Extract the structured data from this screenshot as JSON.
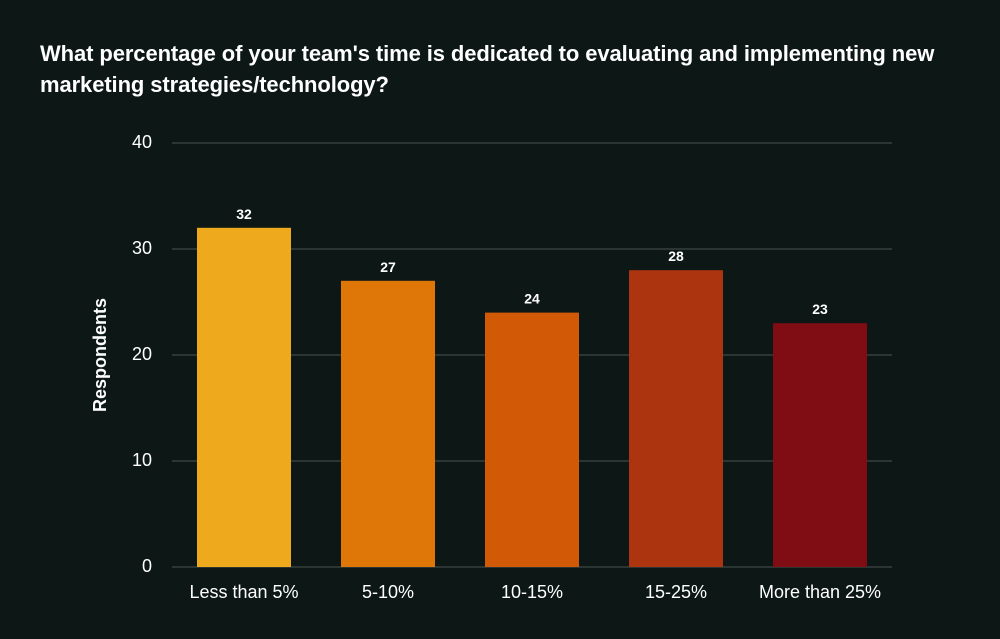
{
  "chart_data": {
    "type": "bar",
    "title": "What percentage of your team's time is dedicated to evaluating and implementing new marketing strategies/technology?",
    "xlabel": "",
    "ylabel": "Respondents",
    "categories": [
      "Less than 5%",
      "5-10%",
      "10-15%",
      "15-25%",
      "More than 25%"
    ],
    "values": [
      32,
      27,
      24,
      28,
      23
    ],
    "colors": [
      "#eeaa1c",
      "#de7707",
      "#d25a07",
      "#ac340e",
      "#810d14"
    ],
    "ylim": [
      0,
      40
    ],
    "yticks": [
      0,
      10,
      20,
      30,
      40
    ],
    "grid": true,
    "data_labels": true
  },
  "style": {
    "background": "#0c1716",
    "gridline_color": "#4a5453",
    "text_color": "#ffffff"
  }
}
